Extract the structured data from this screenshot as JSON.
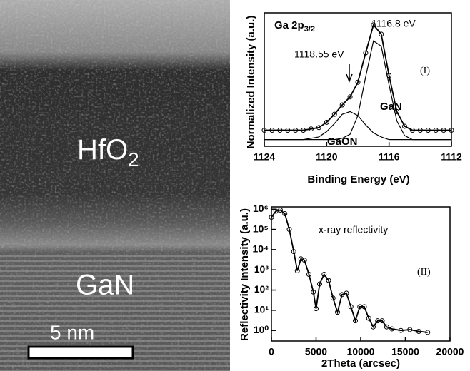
{
  "micrograph": {
    "layer_top": {
      "main": "HfO",
      "sub": "2"
    },
    "layer_bottom": "GaN",
    "scale_bar": "5 nm"
  },
  "chart_data": [
    {
      "type": "line",
      "title": "Ga 2p",
      "title_sub": "3/2",
      "x_label": "Binding Energy (eV)",
      "y_label": "Normalized Intensity (a.u.)",
      "annotations": {
        "peak_main": "1116.8 eV",
        "peak_shoulder": "1118.55 eV",
        "panel": "(I)",
        "component_1": "GaN",
        "component_2": "GaON"
      },
      "arrow_at": 1118.55,
      "xlim": [
        1124,
        1112
      ],
      "xticks": [
        1124,
        1120,
        1116,
        1112
      ],
      "ylim": [
        0,
        1
      ],
      "x": [
        1124,
        1123.5,
        1123,
        1122.5,
        1122,
        1121.5,
        1121,
        1120.5,
        1120,
        1119.5,
        1119,
        1118.5,
        1118,
        1117.5,
        1117,
        1116.5,
        1116,
        1115.5,
        1115,
        1114.5,
        1114,
        1113.5,
        1113,
        1112.5,
        1112
      ],
      "series": [
        {
          "color": "#000000",
          "marker": "circle",
          "values": [
            0.12,
            0.12,
            0.12,
            0.12,
            0.12,
            0.12,
            0.13,
            0.14,
            0.18,
            0.24,
            0.31,
            0.37,
            0.48,
            0.7,
            0.91,
            0.84,
            0.53,
            0.26,
            0.15,
            0.12,
            0.12,
            0.12,
            0.12,
            0.12,
            0.12
          ]
        },
        {
          "color": "#000000",
          "values": [
            0.05,
            0.05,
            0.05,
            0.05,
            0.05,
            0.05,
            0.05,
            0.05,
            0.05,
            0.05,
            0.06,
            0.09,
            0.23,
            0.52,
            0.79,
            0.75,
            0.46,
            0.19,
            0.08,
            0.05,
            0.05,
            0.05,
            0.05,
            0.05,
            0.05
          ]
        },
        {
          "color": "#000000",
          "values": [
            0.05,
            0.05,
            0.05,
            0.05,
            0.05,
            0.05,
            0.06,
            0.07,
            0.11,
            0.17,
            0.24,
            0.26,
            0.23,
            0.16,
            0.1,
            0.07,
            0.05,
            0.05,
            0.05,
            0.05,
            0.05,
            0.05,
            0.05,
            0.05,
            0.05
          ]
        }
      ]
    },
    {
      "type": "line",
      "log_y": true,
      "x_label": "2Theta (arcsec)",
      "y_label": "Reflectivity Intensity (a.u.)",
      "annotations": {
        "curve": "x-ray reflectivity",
        "panel": "(II)"
      },
      "xlim": [
        0,
        20000
      ],
      "xticks": [
        0,
        5000,
        10000,
        15000,
        20000
      ],
      "ylim": [
        0.3,
        1300000
      ],
      "yticks": [
        {
          "value": 1,
          "label": "10⁰"
        },
        {
          "value": 10,
          "label": "10¹"
        },
        {
          "value": 100,
          "label": "10²"
        },
        {
          "value": 1000,
          "label": "10³"
        },
        {
          "value": 10000,
          "label": "10⁴"
        },
        {
          "value": 100000,
          "label": "10⁵"
        },
        {
          "value": 1000000,
          "label": "10⁶"
        }
      ],
      "x": [
        0,
        500,
        1000,
        1500,
        2000,
        2500,
        2900,
        3300,
        3700,
        4200,
        4700,
        5000,
        5400,
        5900,
        6400,
        6900,
        7400,
        7900,
        8400,
        8900,
        9400,
        9900,
        10400,
        10900,
        11400,
        11900,
        12400,
        12900,
        13500,
        14500,
        15500,
        16500,
        17500
      ],
      "series": [
        {
          "color": "#000000",
          "marker": "circle",
          "values": [
            400000,
            800000,
            900000,
            600000,
            100000,
            8000,
            900,
            3500,
            3000,
            600,
            80,
            12,
            200,
            600,
            300,
            40,
            8,
            60,
            70,
            15,
            3,
            15,
            15,
            4,
            1.5,
            3,
            3,
            1.5,
            1.2,
            1,
            1.1,
            0.9,
            0.8
          ]
        }
      ]
    }
  ]
}
